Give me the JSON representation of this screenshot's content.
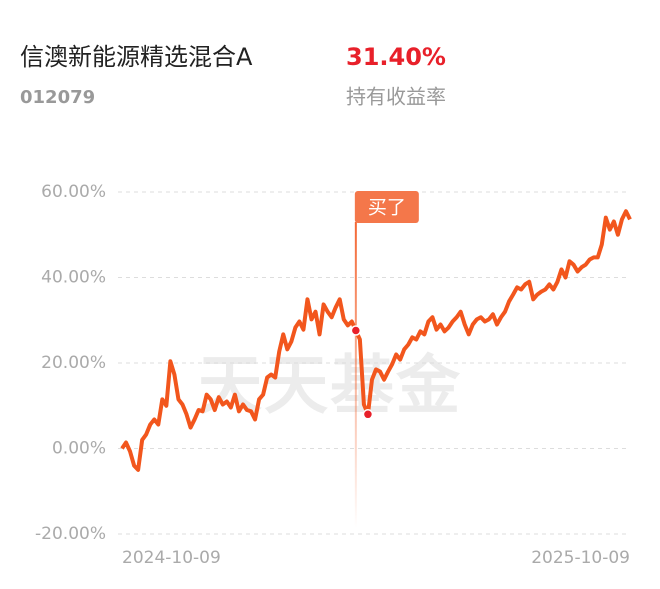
{
  "header": {
    "fund_name": "信澳新能源精选混合A",
    "return_value": "31.40%",
    "fund_code": "012079",
    "return_label": "持有收益率"
  },
  "chart_data": {
    "type": "line",
    "watermark": "天天基金",
    "annotation": "买了",
    "x_labels": [
      "2024-10-09",
      "2025-10-09"
    ],
    "ylim": [
      -20,
      60
    ],
    "yticks": [
      {
        "value": 60,
        "label": "60.00%"
      },
      {
        "value": 40,
        "label": "40.00%"
      },
      {
        "value": 20,
        "label": "20.00%"
      },
      {
        "value": 0,
        "label": "0.00%"
      },
      {
        "value": -20,
        "label": "-20.00%"
      }
    ],
    "grid": true,
    "series": [
      {
        "color": "#f2561d",
        "values": [
          0,
          1.4,
          -0.7,
          -4,
          -5,
          2,
          3.3,
          5.6,
          6.8,
          5.6,
          11.5,
          10,
          20.4,
          17.3,
          11.5,
          10.3,
          8,
          4.9,
          6.8,
          9,
          8.7,
          12.6,
          11.5,
          9,
          12,
          10.3,
          11,
          9.6,
          12.6,
          8.7,
          10.3,
          9,
          8.7,
          6.8,
          11.5,
          12.6,
          16.6,
          17.3,
          16.6,
          22.7,
          26.7,
          23.2,
          25,
          28.3,
          29.7,
          27.8,
          34.9,
          30.2,
          32,
          26.7,
          33.7,
          32,
          30.7,
          33,
          34.9,
          30.2,
          28.8,
          29.7,
          27.6,
          25.5,
          10.3,
          8,
          16.1,
          18.5,
          18,
          16.1,
          18,
          19.7,
          22,
          20.8,
          23.2,
          24.3,
          26,
          25.5,
          27.4,
          26.7,
          29.7,
          30.7,
          27.8,
          29,
          27.4,
          28.3,
          29.7,
          30.7,
          32,
          29,
          26.7,
          29,
          30.2,
          30.7,
          29.7,
          30.2,
          31.4,
          29,
          30.7,
          32,
          34.4,
          36,
          37.7,
          37.2,
          38.4,
          39,
          34.9,
          36,
          36.7,
          37.2,
          38.4,
          37.2,
          39,
          41.9,
          40,
          43.8,
          43,
          41.4,
          42.4,
          43,
          44.2,
          44.7,
          44.7,
          47.7,
          54,
          51.2,
          53.1,
          50,
          53.6,
          55.5,
          53.6
        ]
      }
    ]
  }
}
